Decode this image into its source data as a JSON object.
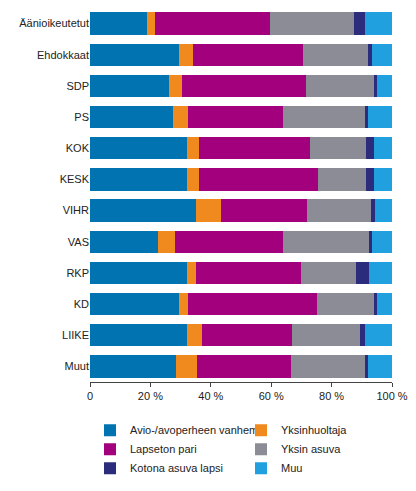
{
  "chart_data": {
    "type": "bar",
    "orientation": "horizontal",
    "stacked": true,
    "grid": false,
    "legend": "bottom",
    "categories": [
      "Äänioikeutetut",
      "Ehdokkaat",
      "SDP",
      "PS",
      "KOK",
      "KESK",
      "VIHR",
      "VAS",
      "RKP",
      "KD",
      "LIIKE",
      "Muut"
    ],
    "xlim": [
      0,
      100
    ],
    "xticks": [
      {
        "value": 0,
        "label": "0"
      },
      {
        "value": 20,
        "label": "20 %"
      },
      {
        "value": 40,
        "label": "40 %"
      },
      {
        "value": 60,
        "label": "60 %"
      },
      {
        "value": 80,
        "label": "80 %"
      },
      {
        "value": 100,
        "label": "100 %"
      }
    ],
    "series": [
      {
        "name": "Avio-/avoperheen vanhempi",
        "color": "#0073b0",
        "values": [
          19,
          29.5,
          26,
          27.5,
          32,
          32,
          35,
          22.5,
          32,
          29.5,
          32,
          28.5
        ]
      },
      {
        "name": "Yksinhuoltaja",
        "color": "#f0891e",
        "values": [
          2.5,
          4.5,
          4.5,
          5,
          4,
          4,
          8.5,
          5.5,
          3,
          3,
          5,
          7
        ]
      },
      {
        "name": "Lapseton pari",
        "color": "#a3007d",
        "values": [
          38,
          36.5,
          41,
          31.5,
          37,
          39.5,
          28.5,
          36,
          35,
          42.5,
          30,
          31
        ]
      },
      {
        "name": "Yksin asuva",
        "color": "#8c8c96",
        "values": [
          28,
          21.5,
          22.5,
          27,
          18.5,
          16,
          21,
          28.5,
          18,
          19,
          22.5,
          24.5
        ]
      },
      {
        "name": "Kotona asuva lapsi",
        "color": "#2b2c7c",
        "values": [
          3.5,
          1.5,
          1,
          1,
          2.5,
          2.5,
          1.5,
          1,
          4.5,
          1,
          1.5,
          1
        ]
      },
      {
        "name": "Muu",
        "color": "#21a0e0",
        "values": [
          9,
          6.5,
          5,
          8,
          6,
          6,
          5.5,
          6.5,
          7.5,
          5,
          9,
          8
        ]
      }
    ]
  }
}
